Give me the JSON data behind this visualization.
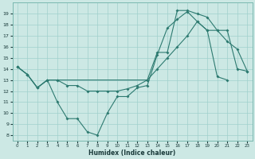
{
  "xlabel": "Humidex (Indice chaleur)",
  "background_color": "#cce8e4",
  "grid_color": "#a0d0cc",
  "line_color": "#2d7a70",
  "xlim": [
    -0.5,
    23.5
  ],
  "ylim": [
    7.5,
    20.0
  ],
  "yticks": [
    8,
    9,
    10,
    11,
    12,
    13,
    14,
    15,
    16,
    17,
    18,
    19
  ],
  "xticks": [
    0,
    1,
    2,
    3,
    4,
    5,
    6,
    7,
    8,
    9,
    10,
    11,
    12,
    13,
    14,
    15,
    16,
    17,
    18,
    19,
    20,
    21,
    22,
    23
  ],
  "line1_x": [
    0,
    1,
    2,
    3,
    4,
    5,
    6,
    7,
    8,
    9,
    10,
    11,
    12,
    13,
    14,
    15,
    16,
    17,
    18,
    19,
    20,
    21
  ],
  "line1_y": [
    14.2,
    13.5,
    12.3,
    13.0,
    11.0,
    9.5,
    9.5,
    8.3,
    8.0,
    10.0,
    11.5,
    11.5,
    12.3,
    12.5,
    15.3,
    17.7,
    18.5,
    19.2,
    18.3,
    17.5,
    13.3,
    13.0
  ],
  "line2_x": [
    0,
    1,
    2,
    3,
    4,
    5,
    6,
    7,
    8,
    9,
    10,
    11,
    12,
    13,
    14,
    15,
    16,
    17,
    18,
    19,
    20,
    21,
    22,
    23
  ],
  "line2_y": [
    14.2,
    13.5,
    12.3,
    13.0,
    13.0,
    12.5,
    12.5,
    12.0,
    12.0,
    12.0,
    12.0,
    12.2,
    12.5,
    13.0,
    14.0,
    15.0,
    16.0,
    17.0,
    18.3,
    17.5,
    17.5,
    17.5,
    14.0,
    13.8
  ],
  "line3_x": [
    0,
    1,
    2,
    3,
    4,
    13,
    14,
    15,
    16,
    17,
    18,
    19,
    20,
    21,
    22,
    23
  ],
  "line3_y": [
    14.2,
    13.5,
    12.3,
    13.0,
    13.0,
    13.0,
    15.5,
    15.5,
    19.3,
    19.3,
    19.0,
    18.7,
    17.5,
    16.5,
    15.8,
    13.8
  ]
}
